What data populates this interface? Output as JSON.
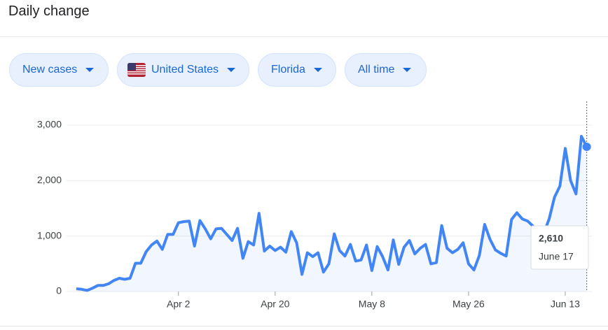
{
  "header": {
    "title": "Daily change"
  },
  "filters": [
    "New cases",
    "United States",
    "Florida",
    "All time"
  ],
  "chart_data": {
    "type": "line",
    "categories": [
      null,
      null,
      null,
      null,
      null,
      null,
      null,
      null,
      null,
      null,
      null,
      null,
      null,
      null,
      null,
      null,
      null,
      null,
      null,
      "Apr 2",
      null,
      null,
      null,
      null,
      null,
      null,
      null,
      null,
      null,
      null,
      null,
      null,
      null,
      null,
      null,
      null,
      null,
      "Apr 20",
      null,
      null,
      null,
      null,
      null,
      null,
      null,
      null,
      null,
      null,
      null,
      null,
      null,
      null,
      null,
      null,
      null,
      "May 8",
      null,
      null,
      null,
      null,
      null,
      null,
      null,
      null,
      null,
      null,
      null,
      null,
      null,
      null,
      null,
      null,
      null,
      "May 26",
      null,
      null,
      null,
      null,
      null,
      null,
      null,
      null,
      null,
      null,
      null,
      null,
      null,
      null,
      null,
      null,
      null,
      "Jun 13",
      null,
      null,
      null,
      null
    ],
    "values": [
      50,
      40,
      20,
      60,
      110,
      110,
      140,
      200,
      240,
      220,
      240,
      510,
      510,
      720,
      840,
      910,
      760,
      1030,
      1030,
      1240,
      1260,
      1270,
      820,
      1280,
      1130,
      950,
      1130,
      1140,
      1030,
      920,
      1140,
      600,
      900,
      840,
      1410,
      730,
      820,
      740,
      800,
      710,
      1080,
      880,
      310,
      700,
      630,
      700,
      350,
      500,
      1040,
      740,
      640,
      850,
      550,
      570,
      840,
      380,
      810,
      630,
      390,
      930,
      490,
      800,
      920,
      680,
      780,
      850,
      500,
      520,
      1190,
      780,
      700,
      760,
      880,
      500,
      390,
      650,
      1210,
      940,
      750,
      690,
      640,
      1300,
      1420,
      1310,
      1270,
      1180,
      1000,
      1050,
      1310,
      1700,
      1900,
      2580,
      2000,
      1760,
      2800,
      2610
    ],
    "color": "#4285f4",
    "ylim": [
      0,
      3000
    ],
    "yticks": [
      0,
      {
        "value": 1000,
        "label": "1,000"
      },
      {
        "value": 2000,
        "label": "2,000"
      },
      {
        "value": 3000,
        "label": "3,000"
      }
    ],
    "grid": true,
    "tooltip": {
      "label": "2,610",
      "date": "June 17"
    }
  }
}
